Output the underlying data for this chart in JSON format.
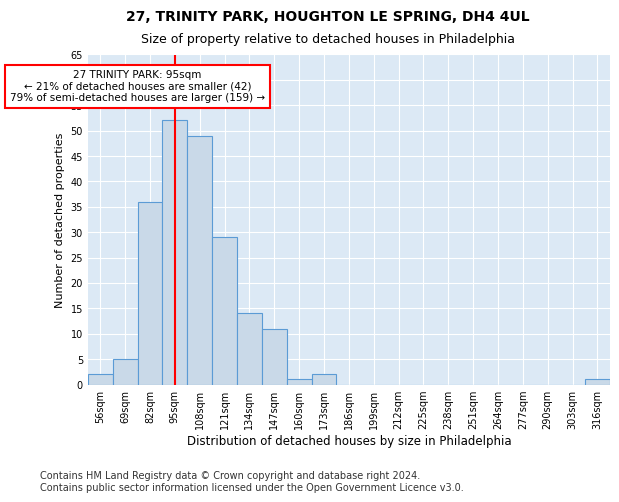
{
  "title": "27, TRINITY PARK, HOUGHTON LE SPRING, DH4 4UL",
  "subtitle": "Size of property relative to detached houses in Philadelphia",
  "xlabel": "Distribution of detached houses by size in Philadelphia",
  "ylabel": "Number of detached properties",
  "bin_labels": [
    "56sqm",
    "69sqm",
    "82sqm",
    "95sqm",
    "108sqm",
    "121sqm",
    "134sqm",
    "147sqm",
    "160sqm",
    "173sqm",
    "186sqm",
    "199sqm",
    "212sqm",
    "225sqm",
    "238sqm",
    "251sqm",
    "264sqm",
    "277sqm",
    "290sqm",
    "303sqm",
    "316sqm"
  ],
  "bar_values": [
    2,
    5,
    36,
    52,
    49,
    29,
    14,
    11,
    1,
    2,
    0,
    0,
    0,
    0,
    0,
    0,
    0,
    0,
    0,
    0,
    1
  ],
  "bar_color": "#c9d9e8",
  "bar_edge_color": "#5b9bd5",
  "vline_x_idx": 3,
  "vline_color": "red",
  "annotation_text": "27 TRINITY PARK: 95sqm\n← 21% of detached houses are smaller (42)\n79% of semi-detached houses are larger (159) →",
  "annotation_box_color": "white",
  "annotation_box_edge_color": "red",
  "ylim": [
    0,
    65
  ],
  "yticks": [
    0,
    5,
    10,
    15,
    20,
    25,
    30,
    35,
    40,
    45,
    50,
    55,
    60,
    65
  ],
  "footer_line1": "Contains HM Land Registry data © Crown copyright and database right 2024.",
  "footer_line2": "Contains public sector information licensed under the Open Government Licence v3.0.",
  "plot_bg_color": "#dce9f5",
  "title_fontsize": 10,
  "subtitle_fontsize": 9,
  "xlabel_fontsize": 8.5,
  "ylabel_fontsize": 8,
  "tick_fontsize": 7,
  "footer_fontsize": 7,
  "ann_fontsize": 7.5
}
